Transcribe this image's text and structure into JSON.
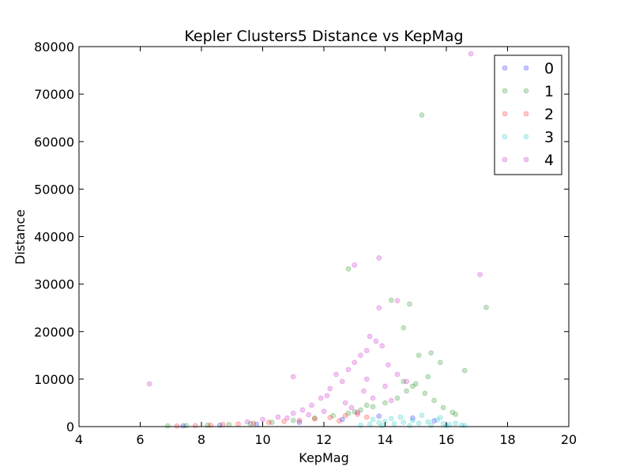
{
  "chart_data": {
    "type": "scatter",
    "title": "Kepler Clusters5 Distance vs KepMag",
    "xlabel": "KepMag",
    "ylabel": "Distance",
    "xlim": [
      4,
      20
    ],
    "ylim": [
      0,
      80000
    ],
    "xticks": [
      "4",
      "6",
      "8",
      "10",
      "12",
      "14",
      "16",
      "18",
      "20"
    ],
    "yticks": [
      "0",
      "10000",
      "20000",
      "30000",
      "40000",
      "50000",
      "60000",
      "70000",
      "80000"
    ],
    "grid": false,
    "legend_position": "top-right",
    "marker_opacity": 0.22,
    "series": [
      {
        "name": "0",
        "color": "#0000ff",
        "points": [
          [
            7.4,
            150
          ],
          [
            8.6,
            300
          ],
          [
            9.8,
            500
          ],
          [
            11.2,
            900
          ],
          [
            12.6,
            1500
          ],
          [
            13.8,
            2200
          ],
          [
            14.9,
            1800
          ],
          [
            15.6,
            1200
          ]
        ]
      },
      {
        "name": "1",
        "color": "#008000",
        "points": [
          [
            6.9,
            150
          ],
          [
            7.5,
            200
          ],
          [
            8.2,
            300
          ],
          [
            8.9,
            450
          ],
          [
            9.6,
            600
          ],
          [
            10.3,
            900
          ],
          [
            11.0,
            1300
          ],
          [
            11.7,
            1800
          ],
          [
            12.3,
            2300
          ],
          [
            12.8,
            2800
          ],
          [
            13.2,
            3500
          ],
          [
            13.6,
            4200
          ],
          [
            14.0,
            5000
          ],
          [
            14.4,
            6000
          ],
          [
            14.7,
            7500
          ],
          [
            15.0,
            9000
          ],
          [
            15.3,
            7000
          ],
          [
            15.6,
            5500
          ],
          [
            15.9,
            4000
          ],
          [
            16.2,
            3000
          ],
          [
            16.3,
            2600
          ],
          [
            14.6,
            9500
          ],
          [
            15.1,
            15000
          ],
          [
            15.5,
            15500
          ],
          [
            15.8,
            13500
          ],
          [
            16.6,
            11800
          ],
          [
            14.6,
            20800
          ],
          [
            14.8,
            25800
          ],
          [
            12.8,
            33200
          ],
          [
            15.2,
            65600
          ],
          [
            17.3,
            25100
          ],
          [
            14.2,
            26600
          ],
          [
            13.4,
            4500
          ],
          [
            13.0,
            3100
          ],
          [
            14.9,
            8500
          ],
          [
            15.4,
            10500
          ]
        ]
      },
      {
        "name": "2",
        "color": "#ff0000",
        "points": [
          [
            7.2,
            120
          ],
          [
            7.8,
            200
          ],
          [
            8.3,
            300
          ],
          [
            8.7,
            420
          ],
          [
            9.2,
            550
          ],
          [
            9.7,
            700
          ],
          [
            10.2,
            900
          ],
          [
            10.7,
            1100
          ],
          [
            11.2,
            1300
          ],
          [
            11.7,
            1600
          ],
          [
            12.2,
            1900
          ],
          [
            12.7,
            2300
          ],
          [
            13.1,
            2600
          ],
          [
            13.4,
            2000
          ],
          [
            12.5,
            1200
          ]
        ]
      },
      {
        "name": "3",
        "color": "#00bfbf",
        "points": [
          [
            13.2,
            300
          ],
          [
            13.5,
            500
          ],
          [
            13.8,
            800
          ],
          [
            14.0,
            1100
          ],
          [
            14.3,
            600
          ],
          [
            14.6,
            900
          ],
          [
            14.9,
            1300
          ],
          [
            15.1,
            700
          ],
          [
            15.4,
            1000
          ],
          [
            15.7,
            1400
          ],
          [
            15.9,
            600
          ],
          [
            16.1,
            400
          ],
          [
            16.3,
            700
          ],
          [
            16.5,
            300
          ],
          [
            14.5,
            2000
          ],
          [
            15.2,
            2400
          ],
          [
            13.6,
            1500
          ],
          [
            14.8,
            200
          ],
          [
            15.5,
            250
          ],
          [
            16.0,
            150
          ],
          [
            13.9,
            150
          ],
          [
            14.2,
            1700
          ],
          [
            15.8,
            1900
          ],
          [
            16.6,
            200
          ]
        ]
      },
      {
        "name": "4",
        "color": "#bf00bf",
        "points": [
          [
            6.3,
            9000
          ],
          [
            9.5,
            1000
          ],
          [
            10.0,
            1500
          ],
          [
            10.5,
            2000
          ],
          [
            11.0,
            2800
          ],
          [
            11.0,
            10500
          ],
          [
            11.3,
            3500
          ],
          [
            11.6,
            4500
          ],
          [
            11.9,
            6000
          ],
          [
            12.2,
            8000
          ],
          [
            12.4,
            11000
          ],
          [
            12.6,
            9500
          ],
          [
            12.8,
            12000
          ],
          [
            13.0,
            13500
          ],
          [
            13.2,
            15000
          ],
          [
            13.4,
            16000
          ],
          [
            13.5,
            19000
          ],
          [
            13.7,
            18000
          ],
          [
            13.9,
            17000
          ],
          [
            14.1,
            13000
          ],
          [
            14.4,
            11000
          ],
          [
            14.7,
            9500
          ],
          [
            13.0,
            34000
          ],
          [
            13.8,
            35500
          ],
          [
            13.8,
            25000
          ],
          [
            14.4,
            26500
          ],
          [
            16.8,
            78500
          ],
          [
            17.1,
            32000
          ],
          [
            12.1,
            6500
          ],
          [
            12.7,
            5000
          ],
          [
            13.3,
            7500
          ],
          [
            13.6,
            6000
          ],
          [
            12.9,
            4000
          ],
          [
            13.1,
            3000
          ],
          [
            14.0,
            8500
          ],
          [
            14.2,
            5500
          ],
          [
            10.8,
            1800
          ],
          [
            11.5,
            2500
          ],
          [
            12.0,
            3200
          ],
          [
            13.4,
            10000
          ]
        ]
      }
    ]
  }
}
